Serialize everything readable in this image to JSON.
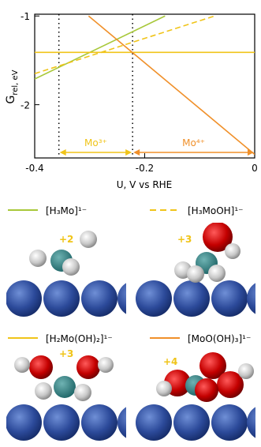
{
  "chart_data": {
    "type": "line",
    "ylabel": "G",
    "ylabel_sub": "rel, eV",
    "xlabel": "U, V vs RHE",
    "xlim": [
      -0.4,
      0
    ],
    "xticks": [
      -0.4,
      -0.2,
      0
    ],
    "ylim": [
      -2.6,
      -0.98
    ],
    "yticks": [
      -1,
      -2
    ],
    "vlines": [
      -0.356,
      -0.222
    ],
    "annotations": [
      {
        "text": "Mo³⁺",
        "color": "#f0c419",
        "x": [
          -0.356,
          -0.222
        ]
      },
      {
        "text": "Mo⁴⁺",
        "color": "#f0902a",
        "x": [
          -0.222,
          0
        ]
      }
    ],
    "series": [
      {
        "name": "[H₃Mo]¹⁻",
        "color": "#a8c83a",
        "dash": false,
        "x": [
          -0.4,
          -0.163
        ],
        "values": [
          -1.71,
          -1.0
        ]
      },
      {
        "name": "[H₃MoOH]¹⁻",
        "color": "#f0c419",
        "dash": true,
        "x": [
          -0.4,
          -0.073
        ],
        "values": [
          -1.65,
          -1.0
        ]
      },
      {
        "name": "[H₂Mo(OH)₂]¹⁻",
        "color": "#f0c419",
        "dash": false,
        "x": [
          -0.4,
          0
        ],
        "values": [
          -1.41,
          -1.41
        ]
      },
      {
        "name": "[MoO(OH)₃]¹⁻",
        "color": "#f0902a",
        "dash": false,
        "x": [
          -0.302,
          0
        ],
        "values": [
          -1.0,
          -2.56
        ]
      }
    ],
    "panels": [
      {
        "charge": "+2"
      },
      {
        "charge": "+3"
      },
      {
        "charge": "+3"
      },
      {
        "charge": "+4"
      }
    ]
  }
}
